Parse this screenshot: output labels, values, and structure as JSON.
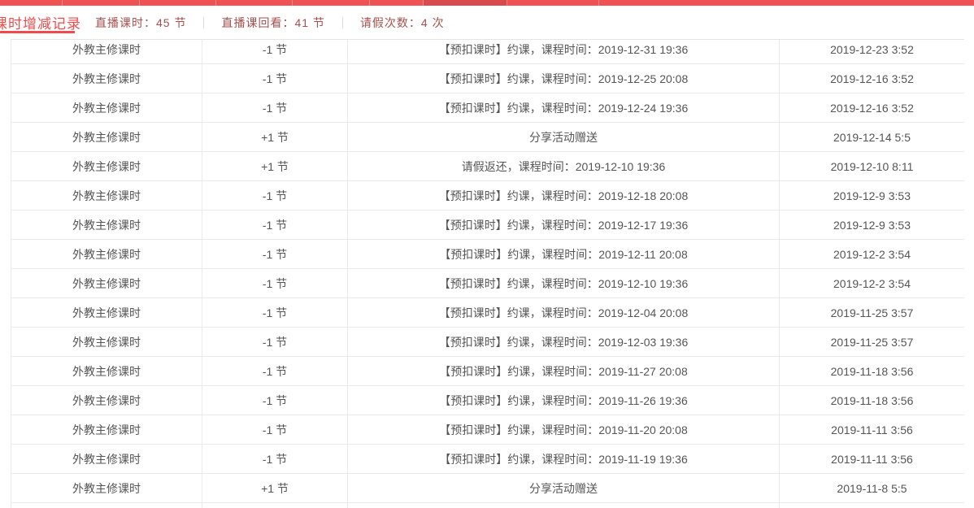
{
  "colors": {
    "accent_red": "#f34b4b",
    "topbar_red": "#f05152",
    "topbar_active_red": "#d84a4b",
    "stats_text": "#a5504d",
    "table_text": "#555555",
    "border": "#ebebeb"
  },
  "header": {
    "tab": "课时增减记录",
    "stats": [
      "直播课时：45 节",
      "直播课回看：41 节",
      "请假次数：4 次"
    ]
  },
  "table": {
    "rows": [
      [
        "外教主修课时",
        "-1 节",
        "【预扣课时】约课，课程时间：2019-12-31 19:36",
        "2019-12-23 3:52"
      ],
      [
        "外教主修课时",
        "-1 节",
        "【预扣课时】约课，课程时间：2019-12-25 20:08",
        "2019-12-16 3:52"
      ],
      [
        "外教主修课时",
        "-1 节",
        "【预扣课时】约课，课程时间：2019-12-24 19:36",
        "2019-12-16 3:52"
      ],
      [
        "外教主修课时",
        "+1 节",
        "分享活动赠送",
        "2019-12-14 5:5"
      ],
      [
        "外教主修课时",
        "+1 节",
        "请假返还，课程时间：2019-12-10 19:36",
        "2019-12-10 8:11"
      ],
      [
        "外教主修课时",
        "-1 节",
        "【预扣课时】约课，课程时间：2019-12-18 20:08",
        "2019-12-9 3:53"
      ],
      [
        "外教主修课时",
        "-1 节",
        "【预扣课时】约课，课程时间：2019-12-17 19:36",
        "2019-12-9 3:53"
      ],
      [
        "外教主修课时",
        "-1 节",
        "【预扣课时】约课，课程时间：2019-12-11 20:08",
        "2019-12-2 3:54"
      ],
      [
        "外教主修课时",
        "-1 节",
        "【预扣课时】约课，课程时间：2019-12-10 19:36",
        "2019-12-2 3:54"
      ],
      [
        "外教主修课时",
        "-1 节",
        "【预扣课时】约课，课程时间：2019-12-04 20:08",
        "2019-11-25 3:57"
      ],
      [
        "外教主修课时",
        "-1 节",
        "【预扣课时】约课，课程时间：2019-12-03 19:36",
        "2019-11-25 3:57"
      ],
      [
        "外教主修课时",
        "-1 节",
        "【预扣课时】约课，课程时间：2019-11-27 20:08",
        "2019-11-18 3:56"
      ],
      [
        "外教主修课时",
        "-1 节",
        "【预扣课时】约课，课程时间：2019-11-26 19:36",
        "2019-11-18 3:56"
      ],
      [
        "外教主修课时",
        "-1 节",
        "【预扣课时】约课，课程时间：2019-11-20 20:08",
        "2019-11-11 3:56"
      ],
      [
        "外教主修课时",
        "-1 节",
        "【预扣课时】约课，课程时间：2019-11-19 19:36",
        "2019-11-11 3:56"
      ],
      [
        "外教主修课时",
        "+1 节",
        "分享活动赠送",
        "2019-11-8 5:5"
      ]
    ]
  }
}
